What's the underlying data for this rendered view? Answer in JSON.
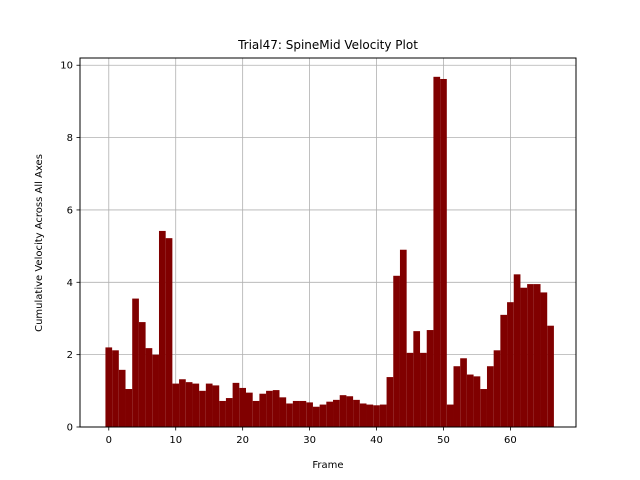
{
  "chart_data": {
    "type": "bar",
    "title": "Trial47: SpineMid Velocity Plot",
    "xlabel": "Frame",
    "ylabel": "Cumulative Velocity Across All Axes",
    "xlim": [
      -4.3,
      69.8
    ],
    "ylim": [
      0,
      10.2
    ],
    "xticks": [
      0,
      10,
      20,
      30,
      40,
      50,
      60
    ],
    "yticks": [
      0,
      2,
      4,
      6,
      8,
      10
    ],
    "grid": true,
    "bar_color": "#800000",
    "x": [
      0,
      1,
      2,
      3,
      4,
      5,
      6,
      7,
      8,
      9,
      10,
      11,
      12,
      13,
      14,
      15,
      16,
      17,
      18,
      19,
      20,
      21,
      22,
      23,
      24,
      25,
      26,
      27,
      28,
      29,
      30,
      31,
      32,
      33,
      34,
      35,
      36,
      37,
      38,
      39,
      40,
      41,
      42,
      43,
      44,
      45,
      46,
      47,
      48,
      49,
      50,
      51,
      52,
      53,
      54,
      55,
      56,
      57,
      58,
      59,
      60,
      61,
      62,
      63,
      64,
      65,
      66
    ],
    "values": [
      2.2,
      2.12,
      1.58,
      1.05,
      3.55,
      2.9,
      2.18,
      2.0,
      5.42,
      5.22,
      1.2,
      1.32,
      1.24,
      1.2,
      1.0,
      1.2,
      1.15,
      0.72,
      0.8,
      1.22,
      1.08,
      0.95,
      0.72,
      0.92,
      1.0,
      1.02,
      0.82,
      0.65,
      0.72,
      0.72,
      0.68,
      0.56,
      0.62,
      0.7,
      0.75,
      0.88,
      0.85,
      0.75,
      0.65,
      0.62,
      0.6,
      0.62,
      1.38,
      4.18,
      4.9,
      2.05,
      2.65,
      2.05,
      2.68,
      9.68,
      9.62,
      0.62,
      1.68,
      1.9,
      1.45,
      1.4,
      1.05,
      1.68,
      2.12,
      3.1,
      3.45,
      4.22,
      3.85,
      3.95,
      3.95,
      3.72,
      2.8
    ]
  }
}
